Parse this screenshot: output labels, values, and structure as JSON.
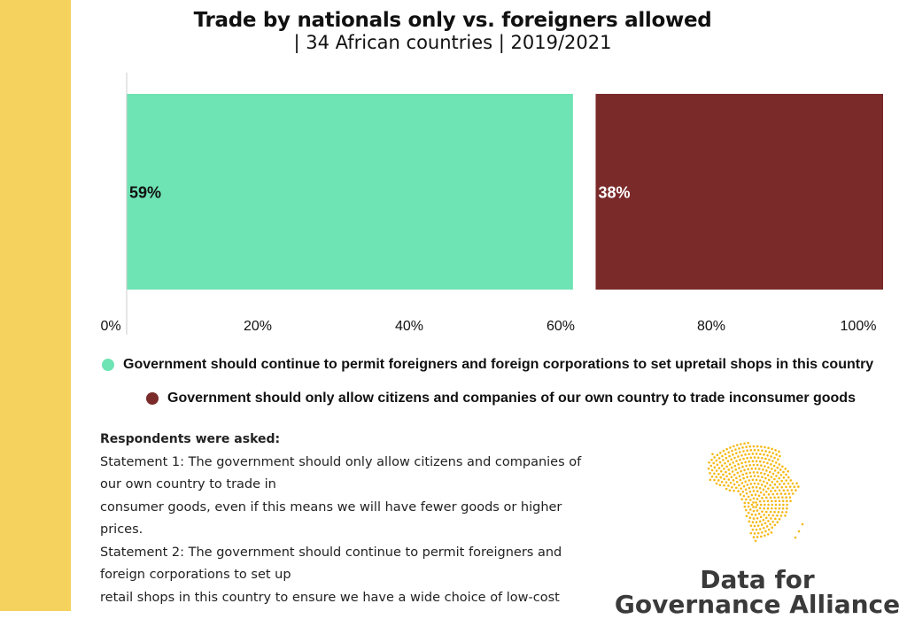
{
  "chart_data": {
    "type": "bar",
    "orientation": "horizontal",
    "stacked": true,
    "title": "Trade by nationals only vs. foreigners allowed",
    "subtitle": "|  34 African countries  |  2019/2021",
    "xlim": [
      0,
      100
    ],
    "x_ticks": [
      "0%",
      "20%",
      "40%",
      "60%",
      "80%",
      "100%"
    ],
    "grid": false,
    "legend_placement": "bottom",
    "series": [
      {
        "name": "Government should continue to permit foreigners and foreign corporations to set upretail shops in this country",
        "value": 59,
        "label": "59%",
        "color": "#6ee3b4",
        "label_color": "#111111"
      },
      {
        "name": "",
        "value": 3,
        "label": "",
        "color": "#ffffff"
      },
      {
        "name": "Government should only allow citizens and companies of our own country to trade inconsumer goods",
        "value": 38,
        "label": "38%",
        "color": "#7b2a2a",
        "label_color": "#ffffff"
      }
    ]
  },
  "legend": [
    {
      "label": "Government should continue to permit foreigners and foreign corporations to set upretail shops in this country",
      "color": "#6ee3b4"
    },
    {
      "label": "Government should only allow citizens and companies of our own country to trade inconsumer goods",
      "color": "#7b2a2a"
    }
  ],
  "notes": {
    "heading": "Respondents were asked:",
    "lines": [
      "Statement 1: The government should only allow citizens and companies of",
      "our own country to trade in",
      "consumer goods, even if this means we will have fewer goods or higher",
      "prices.",
      "Statement 2: The government should continue to permit foreigners and",
      "foreign corporations to set up",
      "retail shops in this country to ensure we have a wide choice of low-cost"
    ]
  },
  "logo": {
    "line1": "Data for",
    "line2": "Governance Alliance",
    "color": "#f5b815"
  },
  "accent": "#f5d25e"
}
